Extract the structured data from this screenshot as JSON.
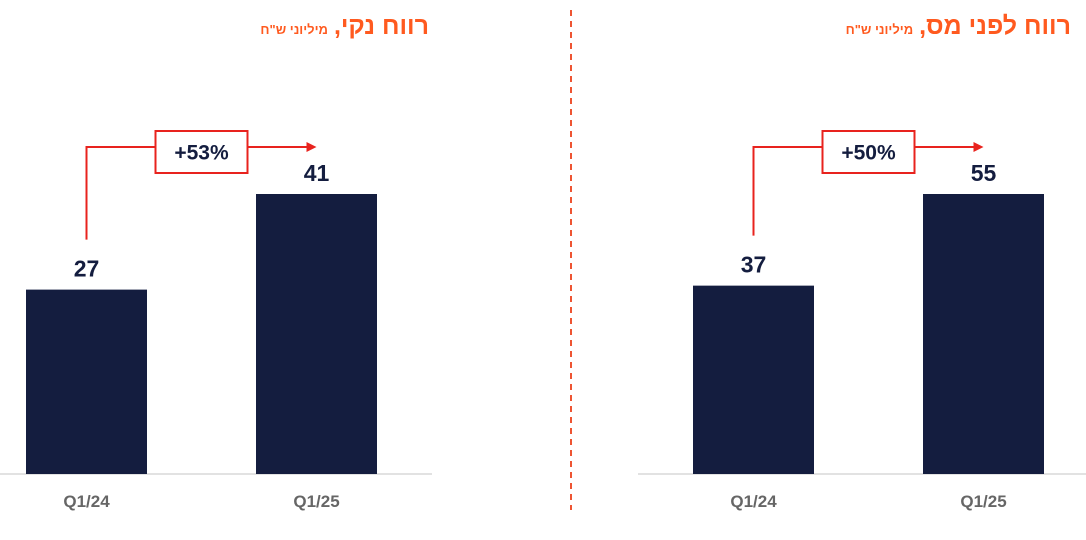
{
  "colors": {
    "bar": "#141d3f",
    "accent": "#ff5a1f",
    "arrow": "#e8231e",
    "divider": "#ee5533",
    "baseline": "#d9d9d9",
    "tick_text": "#666666"
  },
  "chart_data": [
    {
      "type": "bar",
      "title": "רווח נקי,",
      "unit": "מיליוני ש\"ח",
      "categories": [
        "Q1/24",
        "Q1/25"
      ],
      "values": [
        27,
        41
      ],
      "change_label": "+53%",
      "ylim": [
        0,
        41
      ],
      "grid": false,
      "legend": "none",
      "xlabel": "",
      "ylabel": ""
    },
    {
      "type": "bar",
      "title": "רווח לפני מס,",
      "unit": "מיליוני ש\"ח",
      "categories": [
        "Q1/24",
        "Q1/25"
      ],
      "values": [
        37,
        55
      ],
      "change_label": "+50%",
      "ylim": [
        0,
        55
      ],
      "grid": false,
      "legend": "none",
      "xlabel": "",
      "ylabel": ""
    }
  ]
}
